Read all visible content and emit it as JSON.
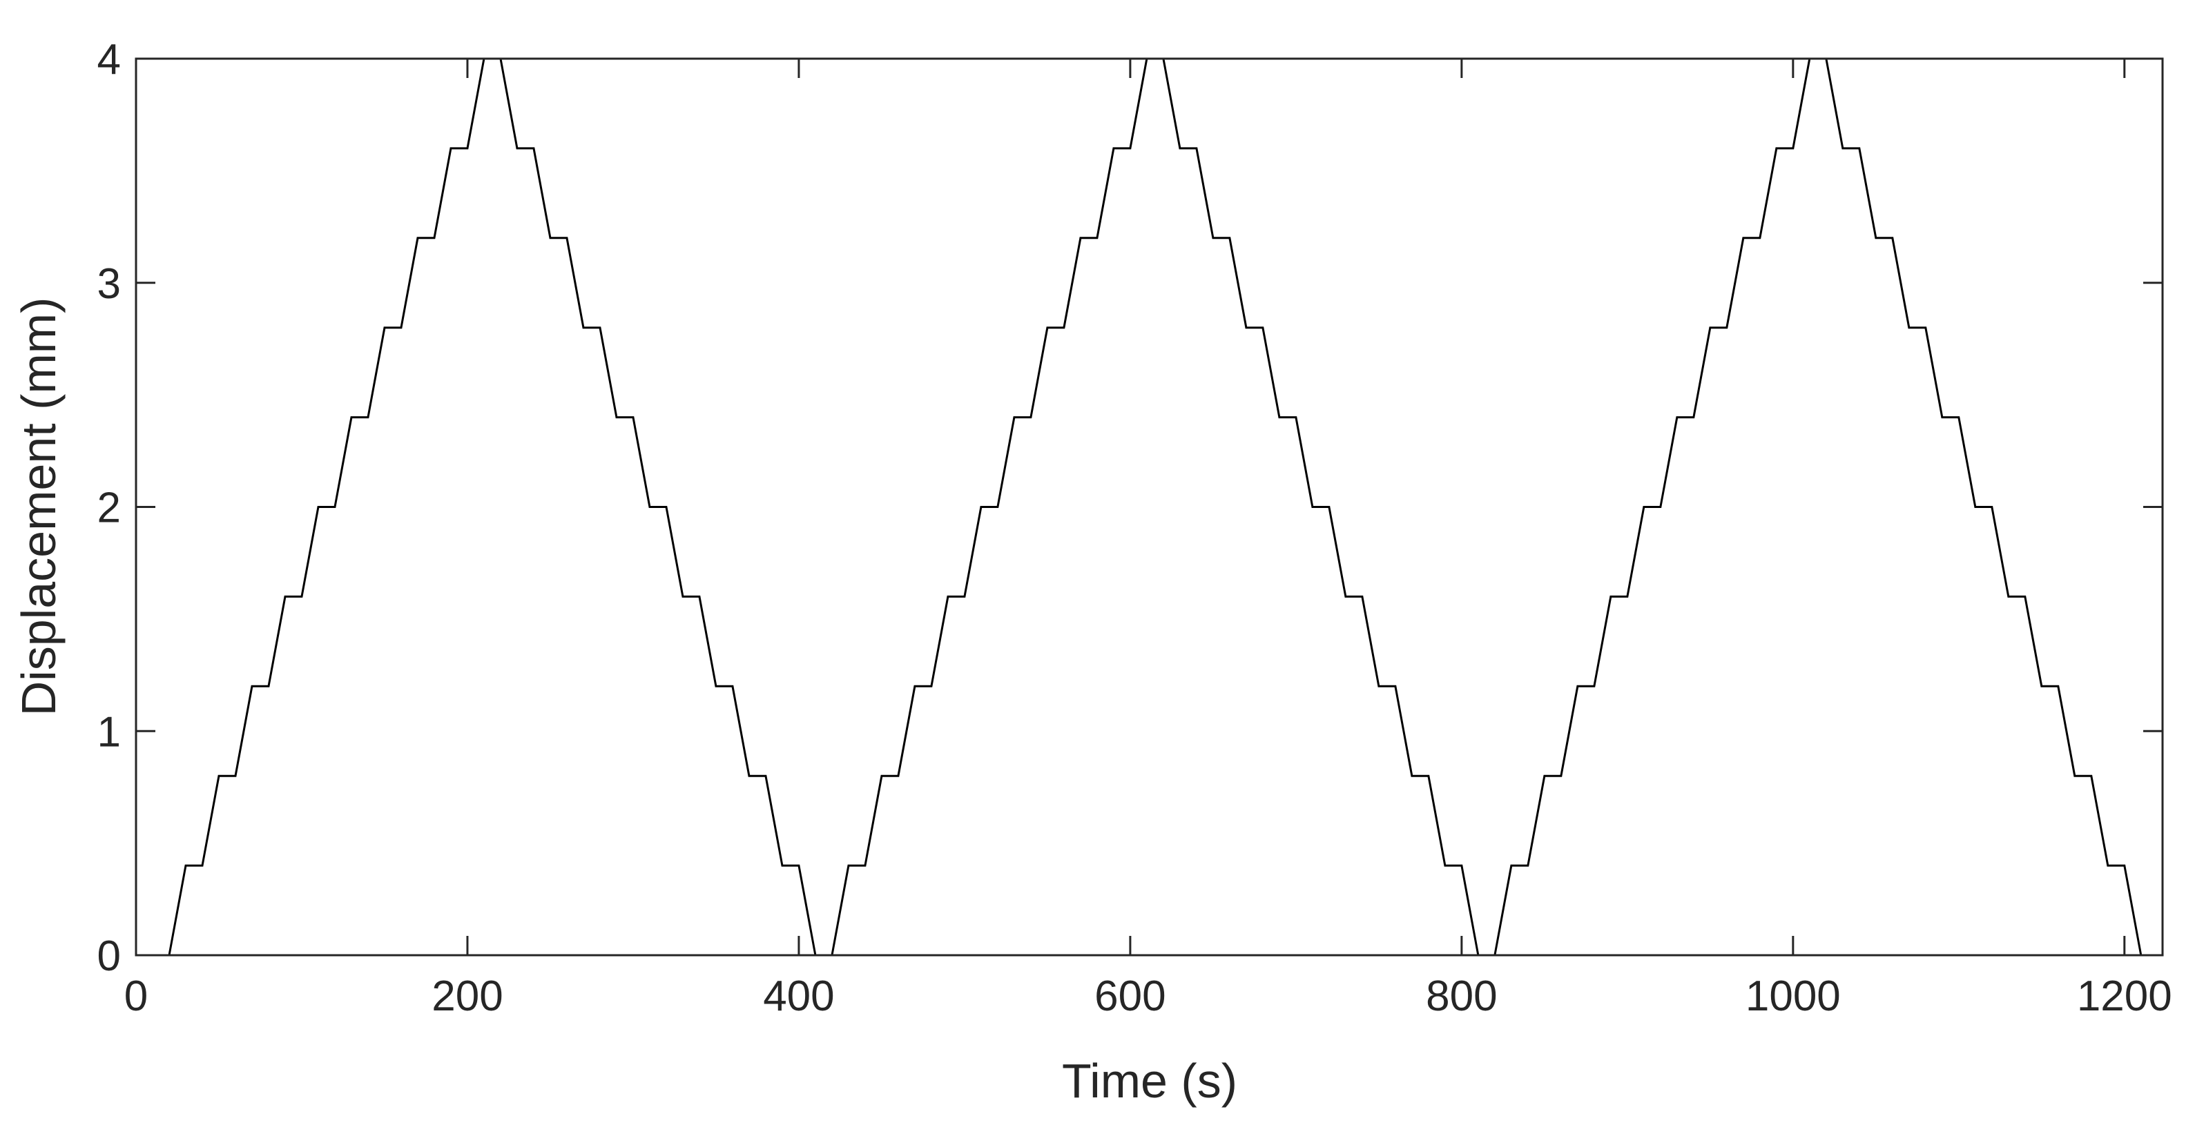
{
  "chart_data": {
    "type": "line",
    "xlabel": "Time (s)",
    "ylabel": "Displacement (mm)",
    "x": [
      10,
      20,
      30,
      40,
      50,
      60,
      70,
      80,
      90,
      100,
      110,
      120,
      130,
      140,
      150,
      160,
      170,
      180,
      190,
      200,
      210,
      220,
      230,
      240,
      250,
      260,
      270,
      280,
      290,
      300,
      310,
      320,
      330,
      340,
      350,
      360,
      370,
      380,
      390,
      400,
      410,
      420,
      430,
      440,
      450,
      460,
      470,
      480,
      490,
      500,
      510,
      520,
      530,
      540,
      550,
      560,
      570,
      580,
      590,
      600,
      610,
      620,
      630,
      640,
      650,
      660,
      670,
      680,
      690,
      700,
      710,
      720,
      730,
      740,
      750,
      760,
      770,
      780,
      790,
      800,
      810,
      820,
      830,
      840,
      850,
      860,
      870,
      880,
      890,
      900,
      910,
      920,
      930,
      940,
      950,
      960,
      970,
      980,
      990,
      1000,
      1010,
      1020,
      1030,
      1040,
      1050,
      1060,
      1070,
      1080,
      1090,
      1100,
      1110,
      1120,
      1130,
      1140,
      1150,
      1160,
      1170,
      1180,
      1190,
      1200,
      1210
    ],
    "values": [
      0,
      0,
      0.4,
      0.4,
      0.8,
      0.8,
      1.2,
      1.2,
      1.6,
      1.6,
      2,
      2,
      2.4,
      2.4,
      2.8,
      2.8,
      3.2,
      3.2,
      3.6,
      3.6,
      4,
      4,
      3.6,
      3.6,
      3.2,
      3.2,
      2.8,
      2.8,
      2.4,
      2.4,
      2,
      2,
      1.6,
      1.6,
      1.2,
      1.2,
      0.8,
      0.8,
      0.4,
      0.4,
      0,
      0,
      0.4,
      0.4,
      0.8,
      0.8,
      1.2,
      1.2,
      1.6,
      1.6,
      2,
      2,
      2.4,
      2.4,
      2.8,
      2.8,
      3.2,
      3.2,
      3.6,
      3.6,
      4,
      4,
      3.6,
      3.6,
      3.2,
      3.2,
      2.8,
      2.8,
      2.4,
      2.4,
      2,
      2,
      1.6,
      1.6,
      1.2,
      1.2,
      0.8,
      0.8,
      0.4,
      0.4,
      0,
      0,
      0.4,
      0.4,
      0.8,
      0.8,
      1.2,
      1.2,
      1.6,
      1.6,
      2,
      2,
      2.4,
      2.4,
      2.8,
      2.8,
      3.2,
      3.2,
      3.6,
      3.6,
      4,
      4,
      3.6,
      3.6,
      3.2,
      3.2,
      2.8,
      2.8,
      2.4,
      2.4,
      2,
      2,
      1.6,
      1.6,
      1.2,
      1.2,
      0.8,
      0.8,
      0.4,
      0.4,
      0
    ],
    "color": "#000000",
    "xlim": [
      0,
      1223
    ],
    "xticks": [
      0,
      200,
      400,
      600,
      800,
      1000,
      1200
    ],
    "ylim": [
      0,
      4
    ],
    "yticks": [
      0,
      1,
      2,
      3,
      4
    ]
  }
}
